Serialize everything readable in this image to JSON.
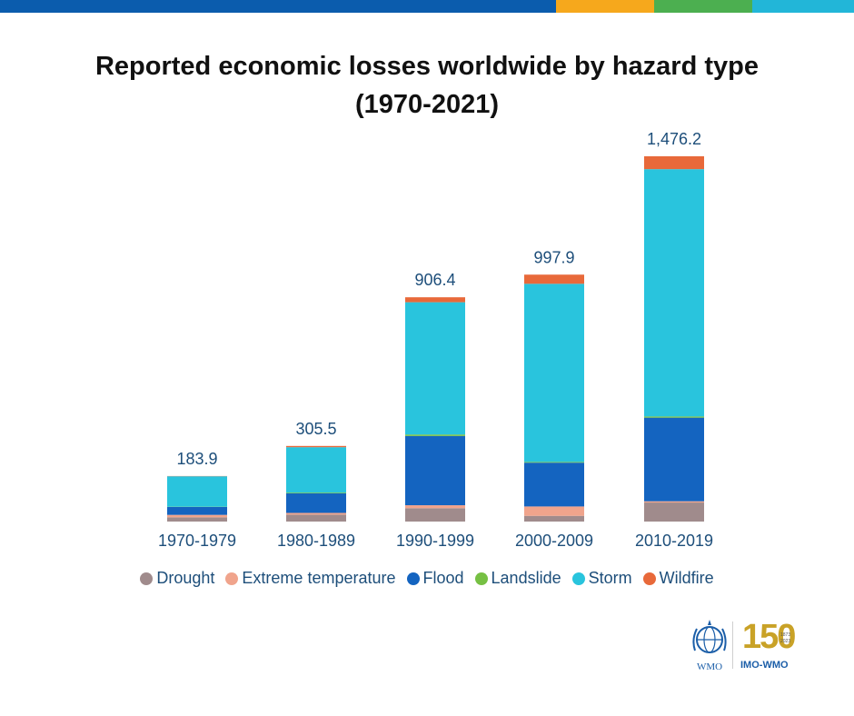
{
  "header": {
    "bar_colors": [
      "#0b5cad",
      "#f6a81c",
      "#4caf50",
      "#22b6d8"
    ]
  },
  "chart_data": {
    "type": "bar",
    "stacked": true,
    "title": "Reported economic losses worldwide by hazard type (1970-2021)",
    "title_lines": [
      "Reported economic losses worldwide by hazard type",
      "(1970-2021)"
    ],
    "categories": [
      "1970-1979",
      "1980-1989",
      "1990-1999",
      "2000-2009",
      "2010-2019"
    ],
    "totals": [
      183.9,
      305.5,
      906.4,
      997.9,
      1476.2
    ],
    "total_labels": [
      "183.9",
      "305.5",
      "906.4",
      "997.9",
      "1,476.2"
    ],
    "series": [
      {
        "name": "Drought",
        "color": "#a08b8c",
        "values": [
          17,
          28,
          54,
          23,
          77
        ]
      },
      {
        "name": "Extreme temperature",
        "color": "#f0a48c",
        "values": [
          10,
          7,
          12,
          38,
          5
        ]
      },
      {
        "name": "Flood",
        "color": "#1464c0",
        "values": [
          32,
          79,
          280,
          177,
          338
        ]
      },
      {
        "name": "Landslide",
        "color": "#76c043",
        "values": [
          1,
          3,
          6,
          3,
          5
        ]
      },
      {
        "name": "Storm",
        "color": "#29c4dd",
        "values": [
          123,
          184,
          535,
          720,
          1000
        ]
      },
      {
        "name": "Wildfire",
        "color": "#e8693a",
        "values": [
          1,
          5,
          20,
          37,
          52
        ]
      }
    ],
    "ylim": [
      0,
      1476.2
    ],
    "grid": false,
    "legend_position": "bottom"
  },
  "legend": {
    "items": [
      {
        "label": "Drought",
        "color": "#a08b8c"
      },
      {
        "label": "Extreme temperature",
        "color": "#f0a48c"
      },
      {
        "label": "Flood",
        "color": "#1464c0"
      },
      {
        "label": "Landslide",
        "color": "#76c043"
      },
      {
        "label": "Storm",
        "color": "#29c4dd"
      },
      {
        "label": "Wildfire",
        "color": "#e8693a"
      }
    ]
  },
  "logos": {
    "wmo_text": "WMO",
    "imo_text": "IMO-WMO",
    "anniversary_text": "150",
    "years_top": "1873",
    "years_bottom": "2023"
  }
}
